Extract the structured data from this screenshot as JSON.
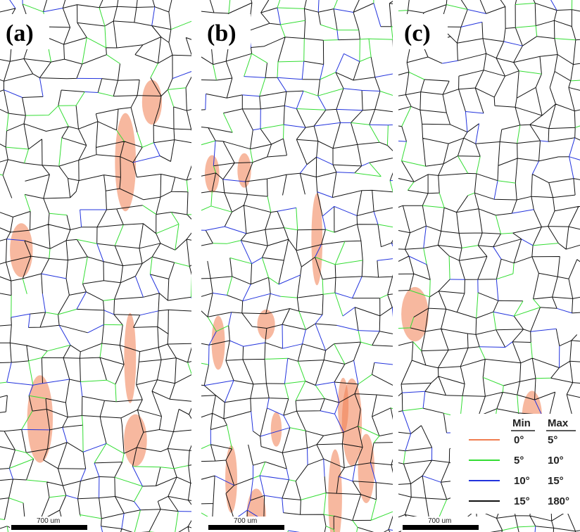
{
  "panels": [
    {
      "label": "(a)",
      "scale_bar": "700 um"
    },
    {
      "label": "(b)",
      "scale_bar": "700 um"
    },
    {
      "label": "(c)",
      "scale_bar": "700 um"
    }
  ],
  "legend": {
    "headers": [
      "Min",
      "Max"
    ],
    "rows": [
      {
        "min": "0°",
        "max": "5°",
        "color": "#f07d50"
      },
      {
        "min": "5°",
        "max": "10°",
        "color": "#33dd33"
      },
      {
        "min": "10°",
        "max": "15°",
        "color": "#2233dd"
      },
      {
        "min": "15°",
        "max": "180°",
        "color": "#111111"
      }
    ]
  }
}
